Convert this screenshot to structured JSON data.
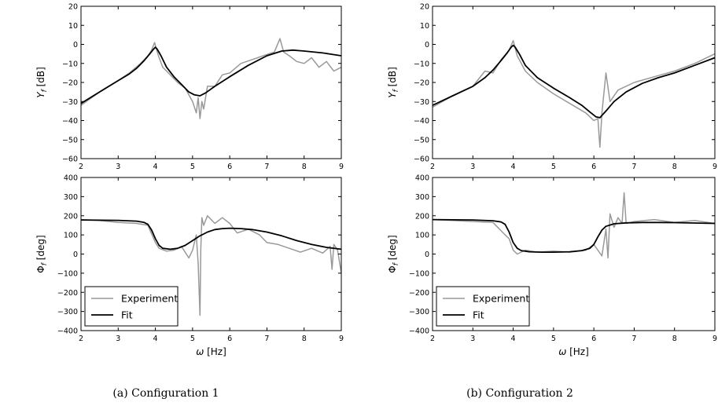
{
  "captions": [
    "(a)  Configuration 1",
    "(b)  Configuration 2"
  ],
  "chart_data": [
    {
      "type": "line",
      "subplot": "a-top",
      "xlabel": "",
      "ylabel": "Y_f [dB]",
      "xlim": [
        2,
        9
      ],
      "ylim": [
        -60,
        20
      ],
      "xticks": [
        "2",
        "3",
        "4",
        "5",
        "6",
        "7",
        "8",
        "9"
      ],
      "yticks": [
        "20",
        "10",
        "0",
        "−10",
        "−20",
        "−30",
        "−40",
        "−50",
        "−60"
      ],
      "series": [
        {
          "name": "Experiment",
          "color": "#999999",
          "x": [
            2.0,
            2.5,
            3.0,
            3.3,
            3.6,
            3.8,
            3.9,
            3.98,
            4.02,
            4.1,
            4.2,
            4.4,
            4.6,
            4.8,
            5.0,
            5.1,
            5.15,
            5.2,
            5.25,
            5.3,
            5.4,
            5.6,
            5.8,
            6.0,
            6.3,
            6.6,
            6.9,
            7.2,
            7.35,
            7.45,
            7.6,
            7.8,
            8.0,
            8.2,
            8.4,
            8.6,
            8.8,
            9.0
          ],
          "y": [
            -32,
            -25,
            -19,
            -15,
            -10,
            -6,
            -3,
            1,
            -2,
            -7,
            -12,
            -16,
            -20,
            -23,
            -30,
            -36,
            -28,
            -39,
            -30,
            -34,
            -22,
            -22,
            -16,
            -15,
            -10,
            -8,
            -6,
            -4,
            3,
            -4,
            -6,
            -9,
            -10,
            -7,
            -12,
            -9,
            -14,
            -12
          ]
        },
        {
          "name": "Fit",
          "color": "#000000",
          "x": [
            2.0,
            2.5,
            3.0,
            3.3,
            3.5,
            3.7,
            3.85,
            3.95,
            4.0,
            4.05,
            4.15,
            4.3,
            4.5,
            4.7,
            4.9,
            5.05,
            5.2,
            5.35,
            5.6,
            6.0,
            6.5,
            7.0,
            7.4,
            7.7,
            8.0,
            8.5,
            9.0
          ],
          "y": [
            -31,
            -25,
            -19,
            -15.5,
            -12.5,
            -8.5,
            -5,
            -2.5,
            -1.5,
            -2.5,
            -6,
            -12,
            -17,
            -21,
            -25,
            -26.5,
            -27,
            -25.5,
            -22,
            -17,
            -11,
            -6,
            -3.5,
            -3,
            -3.5,
            -4.5,
            -6
          ]
        }
      ]
    },
    {
      "type": "line",
      "subplot": "a-bottom",
      "xlabel": "ω [Hz]",
      "ylabel": "Φ_f [deg]",
      "xlim": [
        2,
        9
      ],
      "ylim": [
        -400,
        400
      ],
      "xticks": [
        "2",
        "3",
        "4",
        "5",
        "6",
        "7",
        "8",
        "9"
      ],
      "yticks": [
        "400",
        "300",
        "200",
        "100",
        "0",
        "−100",
        "−200",
        "−300",
        "−400"
      ],
      "legend": {
        "position": "lower-left",
        "entries": [
          "Experiment",
          "Fit"
        ]
      },
      "series": [
        {
          "name": "Experiment",
          "color": "#999999",
          "x": [
            2.0,
            2.5,
            3.0,
            3.5,
            3.8,
            4.0,
            4.1,
            4.3,
            4.5,
            4.7,
            4.9,
            5.0,
            5.1,
            5.15,
            5.2,
            5.22,
            5.25,
            5.3,
            5.4,
            5.5,
            5.6,
            5.8,
            6.0,
            6.2,
            6.5,
            6.8,
            7.0,
            7.3,
            7.6,
            7.9,
            8.2,
            8.5,
            8.7,
            8.75,
            8.8,
            8.9,
            9.0
          ],
          "y": [
            180,
            175,
            165,
            160,
            150,
            60,
            30,
            15,
            20,
            40,
            -20,
            20,
            100,
            -50,
            -320,
            20,
            190,
            150,
            200,
            180,
            160,
            190,
            160,
            110,
            130,
            100,
            60,
            50,
            30,
            10,
            30,
            5,
            40,
            -80,
            50,
            20,
            -100
          ]
        },
        {
          "name": "Fit",
          "color": "#000000",
          "x": [
            2.0,
            3.0,
            3.5,
            3.7,
            3.8,
            3.9,
            4.0,
            4.1,
            4.2,
            4.4,
            4.6,
            4.8,
            5.0,
            5.2,
            5.4,
            5.6,
            5.8,
            6.0,
            6.3,
            6.6,
            7.0,
            7.4,
            7.8,
            8.2,
            8.6,
            9.0
          ],
          "y": [
            178,
            176,
            172,
            165,
            155,
            125,
            80,
            45,
            30,
            25,
            30,
            45,
            70,
            95,
            115,
            128,
            133,
            135,
            133,
            128,
            115,
            95,
            70,
            50,
            35,
            25
          ]
        }
      ]
    },
    {
      "type": "line",
      "subplot": "b-top",
      "xlabel": "",
      "ylabel": "Y_f [dB]",
      "xlim": [
        2,
        9
      ],
      "ylim": [
        -60,
        20
      ],
      "xticks": [
        "2",
        "3",
        "4",
        "5",
        "6",
        "7",
        "8",
        "9"
      ],
      "yticks": [
        "20",
        "10",
        "0",
        "−10",
        "−20",
        "−30",
        "−40",
        "−50",
        "−60"
      ],
      "series": [
        {
          "name": "Experiment",
          "color": "#999999",
          "x": [
            2.0,
            2.5,
            3.0,
            3.3,
            3.5,
            3.7,
            3.9,
            4.0,
            4.1,
            4.3,
            4.6,
            5.0,
            5.4,
            5.8,
            6.0,
            6.1,
            6.15,
            6.2,
            6.3,
            6.4,
            6.6,
            7.0,
            7.5,
            8.0,
            8.5,
            9.0
          ],
          "y": [
            -33,
            -27,
            -22,
            -14,
            -15,
            -8,
            -3,
            2,
            -6,
            -14,
            -20,
            -26,
            -31,
            -36,
            -40,
            -39,
            -54,
            -36,
            -15,
            -30,
            -24,
            -20,
            -17,
            -14,
            -10,
            -5
          ]
        },
        {
          "name": "Fit",
          "color": "#000000",
          "x": [
            2.0,
            2.5,
            3.0,
            3.3,
            3.5,
            3.7,
            3.85,
            3.95,
            4.0,
            4.05,
            4.15,
            4.3,
            4.6,
            5.0,
            5.4,
            5.7,
            5.9,
            6.05,
            6.15,
            6.3,
            6.5,
            6.8,
            7.2,
            7.6,
            8.0,
            8.5,
            9.0
          ],
          "y": [
            -32,
            -27,
            -22,
            -17.5,
            -13.5,
            -8.5,
            -4.5,
            -1.5,
            -0.5,
            -1.5,
            -5,
            -11,
            -17.5,
            -23,
            -28,
            -32,
            -35.5,
            -38,
            -38.5,
            -35,
            -30,
            -25,
            -20.5,
            -17.5,
            -15,
            -11,
            -7
          ]
        }
      ]
    },
    {
      "type": "line",
      "subplot": "b-bottom",
      "xlabel": "ω [Hz]",
      "ylabel": "Φ_f [deg]",
      "xlim": [
        2,
        9
      ],
      "ylim": [
        -400,
        400
      ],
      "xticks": [
        "2",
        "3",
        "4",
        "5",
        "6",
        "7",
        "8",
        "9"
      ],
      "yticks": [
        "400",
        "300",
        "200",
        "100",
        "0",
        "−100",
        "−200",
        "−300",
        "−400"
      ],
      "legend": {
        "position": "lower-left",
        "entries": [
          "Experiment",
          "Fit"
        ]
      },
      "series": [
        {
          "name": "Experiment",
          "color": "#999999",
          "x": [
            2.0,
            2.5,
            3.0,
            3.5,
            3.8,
            3.9,
            4.0,
            4.1,
            4.3,
            4.6,
            5.0,
            5.4,
            5.8,
            6.0,
            6.2,
            6.3,
            6.35,
            6.4,
            6.5,
            6.6,
            6.7,
            6.75,
            6.8,
            7.0,
            7.5,
            8.0,
            8.5,
            9.0
          ],
          "y": [
            180,
            175,
            170,
            165,
            100,
            80,
            20,
            0,
            20,
            10,
            15,
            10,
            20,
            50,
            -10,
            130,
            -20,
            210,
            140,
            190,
            160,
            320,
            160,
            170,
            180,
            165,
            175,
            160
          ]
        },
        {
          "name": "Fit",
          "color": "#000000",
          "x": [
            2.0,
            3.0,
            3.5,
            3.7,
            3.8,
            3.9,
            4.0,
            4.1,
            4.2,
            4.4,
            4.7,
            5.0,
            5.4,
            5.7,
            5.9,
            6.0,
            6.1,
            6.2,
            6.3,
            6.5,
            6.8,
            7.2,
            7.6,
            8.0,
            8.5,
            9.0
          ],
          "y": [
            180,
            178,
            174,
            168,
            155,
            115,
            60,
            30,
            18,
            12,
            10,
            10,
            12,
            18,
            30,
            50,
            90,
            125,
            145,
            158,
            163,
            165,
            165,
            164,
            162,
            160
          ]
        }
      ]
    }
  ]
}
